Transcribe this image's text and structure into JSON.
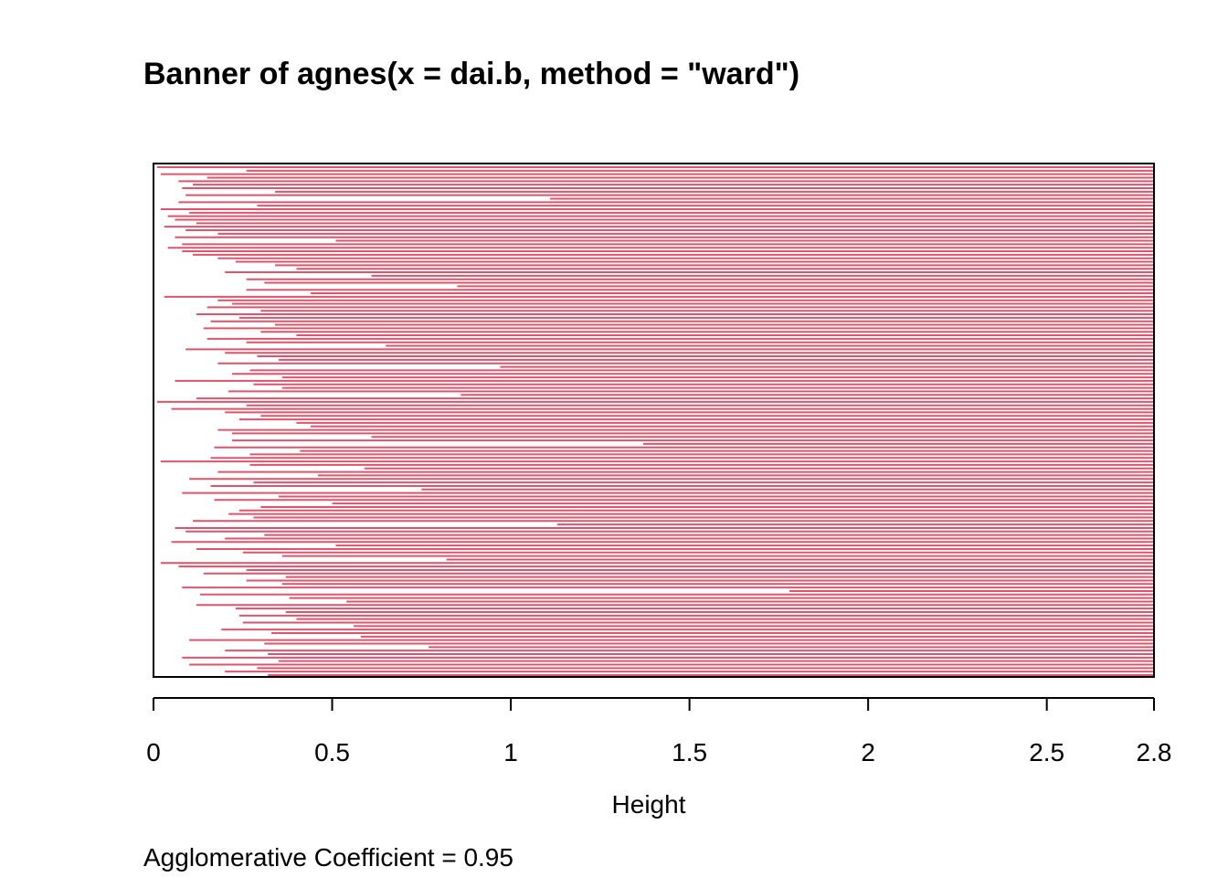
{
  "chart_data": {
    "type": "bar",
    "title": "Banner of  agnes(x = dai.b, method = \"ward\")",
    "xlabel": "Height",
    "ylabel": "",
    "xlim": [
      0,
      2.8
    ],
    "xticks": [
      {
        "value": 0,
        "label": "0"
      },
      {
        "value": 0.5,
        "label": "0.5"
      },
      {
        "value": 1,
        "label": "1"
      },
      {
        "value": 1.5,
        "label": "1.5"
      },
      {
        "value": 2,
        "label": "2"
      },
      {
        "value": 2.5,
        "label": "2.5"
      },
      {
        "value": 2.8,
        "label": "2.8"
      }
    ],
    "bar_color": "#DF536B",
    "orientation": "horizontal",
    "description_note": "",
    "merge_heights": [
      0.01,
      0.26,
      0.02,
      0.15,
      0.07,
      0.11,
      0.08,
      0.34,
      0.09,
      1.11,
      0.07,
      0.29,
      0.02,
      0.1,
      0.04,
      0.06,
      0.12,
      0.03,
      0.09,
      0.18,
      0.06,
      0.51,
      0.08,
      0.04,
      0.08,
      0.11,
      0.18,
      0.23,
      0.34,
      0.4,
      0.2,
      0.61,
      0.26,
      0.31,
      0.85,
      0.26,
      0.44,
      0.03,
      0.18,
      0.22,
      0.15,
      0.3,
      0.12,
      0.24,
      0.16,
      0.34,
      0.14,
      0.3,
      0.4,
      0.15,
      0.26,
      0.65,
      0.09,
      0.2,
      0.29,
      0.35,
      0.18,
      0.97,
      0.27,
      0.22,
      0.36,
      0.06,
      0.28,
      0.36,
      0.21,
      0.86,
      0.12,
      0.01,
      0.26,
      0.05,
      0.2,
      0.3,
      0.24,
      0.4,
      0.44,
      0.18,
      0.22,
      0.61,
      0.22,
      1.37,
      0.17,
      0.41,
      0.27,
      0.16,
      0.02,
      0.27,
      0.59,
      0.18,
      0.46,
      0.1,
      0.28,
      0.16,
      0.75,
      0.08,
      0.35,
      0.17,
      0.5,
      0.3,
      0.24,
      0.21,
      0.28,
      0.11,
      1.13,
      0.06,
      0.09,
      0.31,
      0.2,
      0.05,
      0.51,
      0.12,
      0.25,
      0.36,
      0.82,
      0.02,
      0.07,
      0.26,
      0.14,
      0.37,
      0.26,
      0.36,
      0.08,
      1.78,
      0.13,
      0.38,
      0.54,
      0.12,
      0.23,
      0.37,
      0.24,
      0.4,
      0.25,
      0.56,
      0.19,
      0.33,
      0.58,
      0.1,
      0.31,
      0.77,
      0.2,
      0.32,
      0.08,
      0.35,
      0.1,
      0.29,
      0.2,
      0.32
    ],
    "footer": "Agglomerative Coefficient =  0.95"
  }
}
